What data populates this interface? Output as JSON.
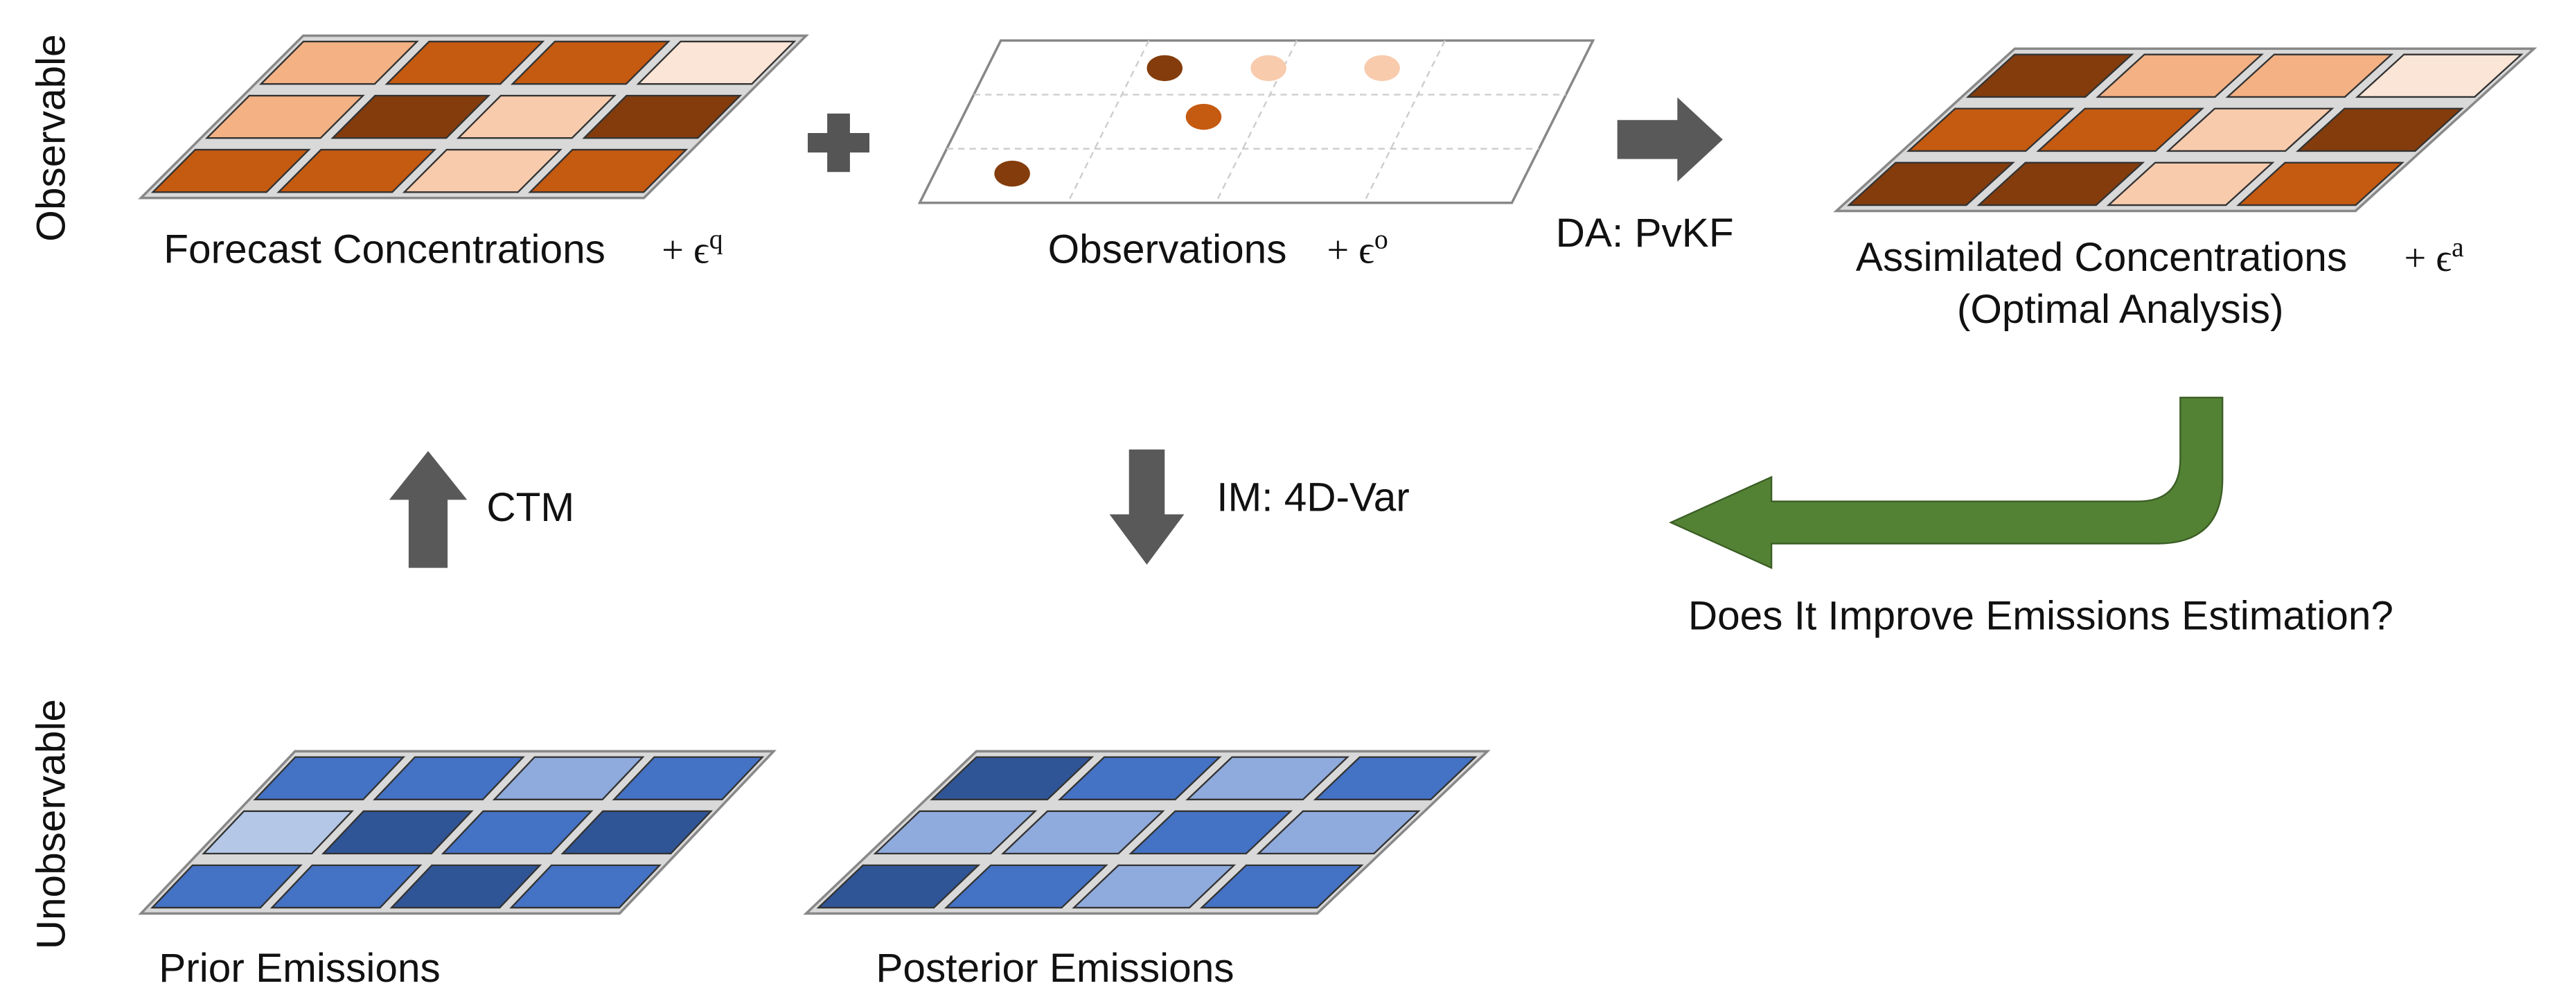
{
  "side_labels": {
    "top": "Observable",
    "bottom": "Unobservable"
  },
  "forecast": {
    "label": "Forecast Concentrations",
    "error_term": {
      "base": "+ ϵ",
      "sup": "q"
    }
  },
  "observations": {
    "label": "Observations",
    "error_term": {
      "base": "+ ϵ",
      "sup": "o"
    }
  },
  "assimilation": {
    "label": "DA: PvKF"
  },
  "assimilated": {
    "label": "Assimilated Concentrations",
    "sublabel": "(Optimal Analysis)",
    "error_term": {
      "base": "+ ϵ",
      "sup": "a"
    }
  },
  "ctm": {
    "label": "CTM"
  },
  "inversion": {
    "label": "IM: 4D-Var"
  },
  "question": {
    "label": "Does It Improve Emissions Estimation?"
  },
  "prior": {
    "label": "Prior Emissions"
  },
  "posterior": {
    "label": "Posterior Emissions"
  }
}
